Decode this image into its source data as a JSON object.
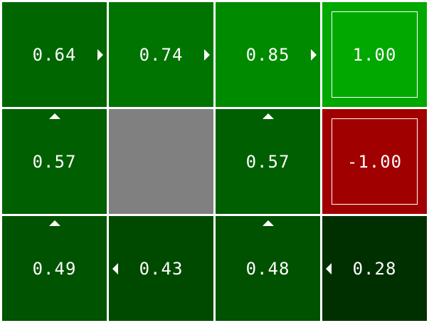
{
  "gridworld": {
    "rows": 3,
    "cols": 4,
    "cells": [
      {
        "row": 0,
        "col": 0,
        "type": "state",
        "value": "0.64",
        "policy": "right",
        "color": "#006700"
      },
      {
        "row": 0,
        "col": 1,
        "type": "state",
        "value": "0.74",
        "policy": "right",
        "color": "#007400"
      },
      {
        "row": 0,
        "col": 2,
        "type": "state",
        "value": "0.85",
        "policy": "right",
        "color": "#008a00"
      },
      {
        "row": 0,
        "col": 3,
        "type": "terminal",
        "value": "1.00",
        "policy": null,
        "color": "#00a800"
      },
      {
        "row": 1,
        "col": 0,
        "type": "state",
        "value": "0.57",
        "policy": "up",
        "color": "#005f00"
      },
      {
        "row": 1,
        "col": 1,
        "type": "wall",
        "value": null,
        "policy": null,
        "color": "#808080"
      },
      {
        "row": 1,
        "col": 2,
        "type": "state",
        "value": "0.57",
        "policy": "up",
        "color": "#005f00"
      },
      {
        "row": 1,
        "col": 3,
        "type": "terminal",
        "value": "-1.00",
        "policy": null,
        "color": "#a10000"
      },
      {
        "row": 2,
        "col": 0,
        "type": "state",
        "value": "0.49",
        "policy": "up",
        "color": "#005300"
      },
      {
        "row": 2,
        "col": 1,
        "type": "state",
        "value": "0.43",
        "policy": "left",
        "color": "#004a00"
      },
      {
        "row": 2,
        "col": 2,
        "type": "state",
        "value": "0.48",
        "policy": "up",
        "color": "#005100"
      },
      {
        "row": 2,
        "col": 3,
        "type": "state",
        "value": "0.28",
        "policy": "left",
        "color": "#003000"
      }
    ]
  }
}
